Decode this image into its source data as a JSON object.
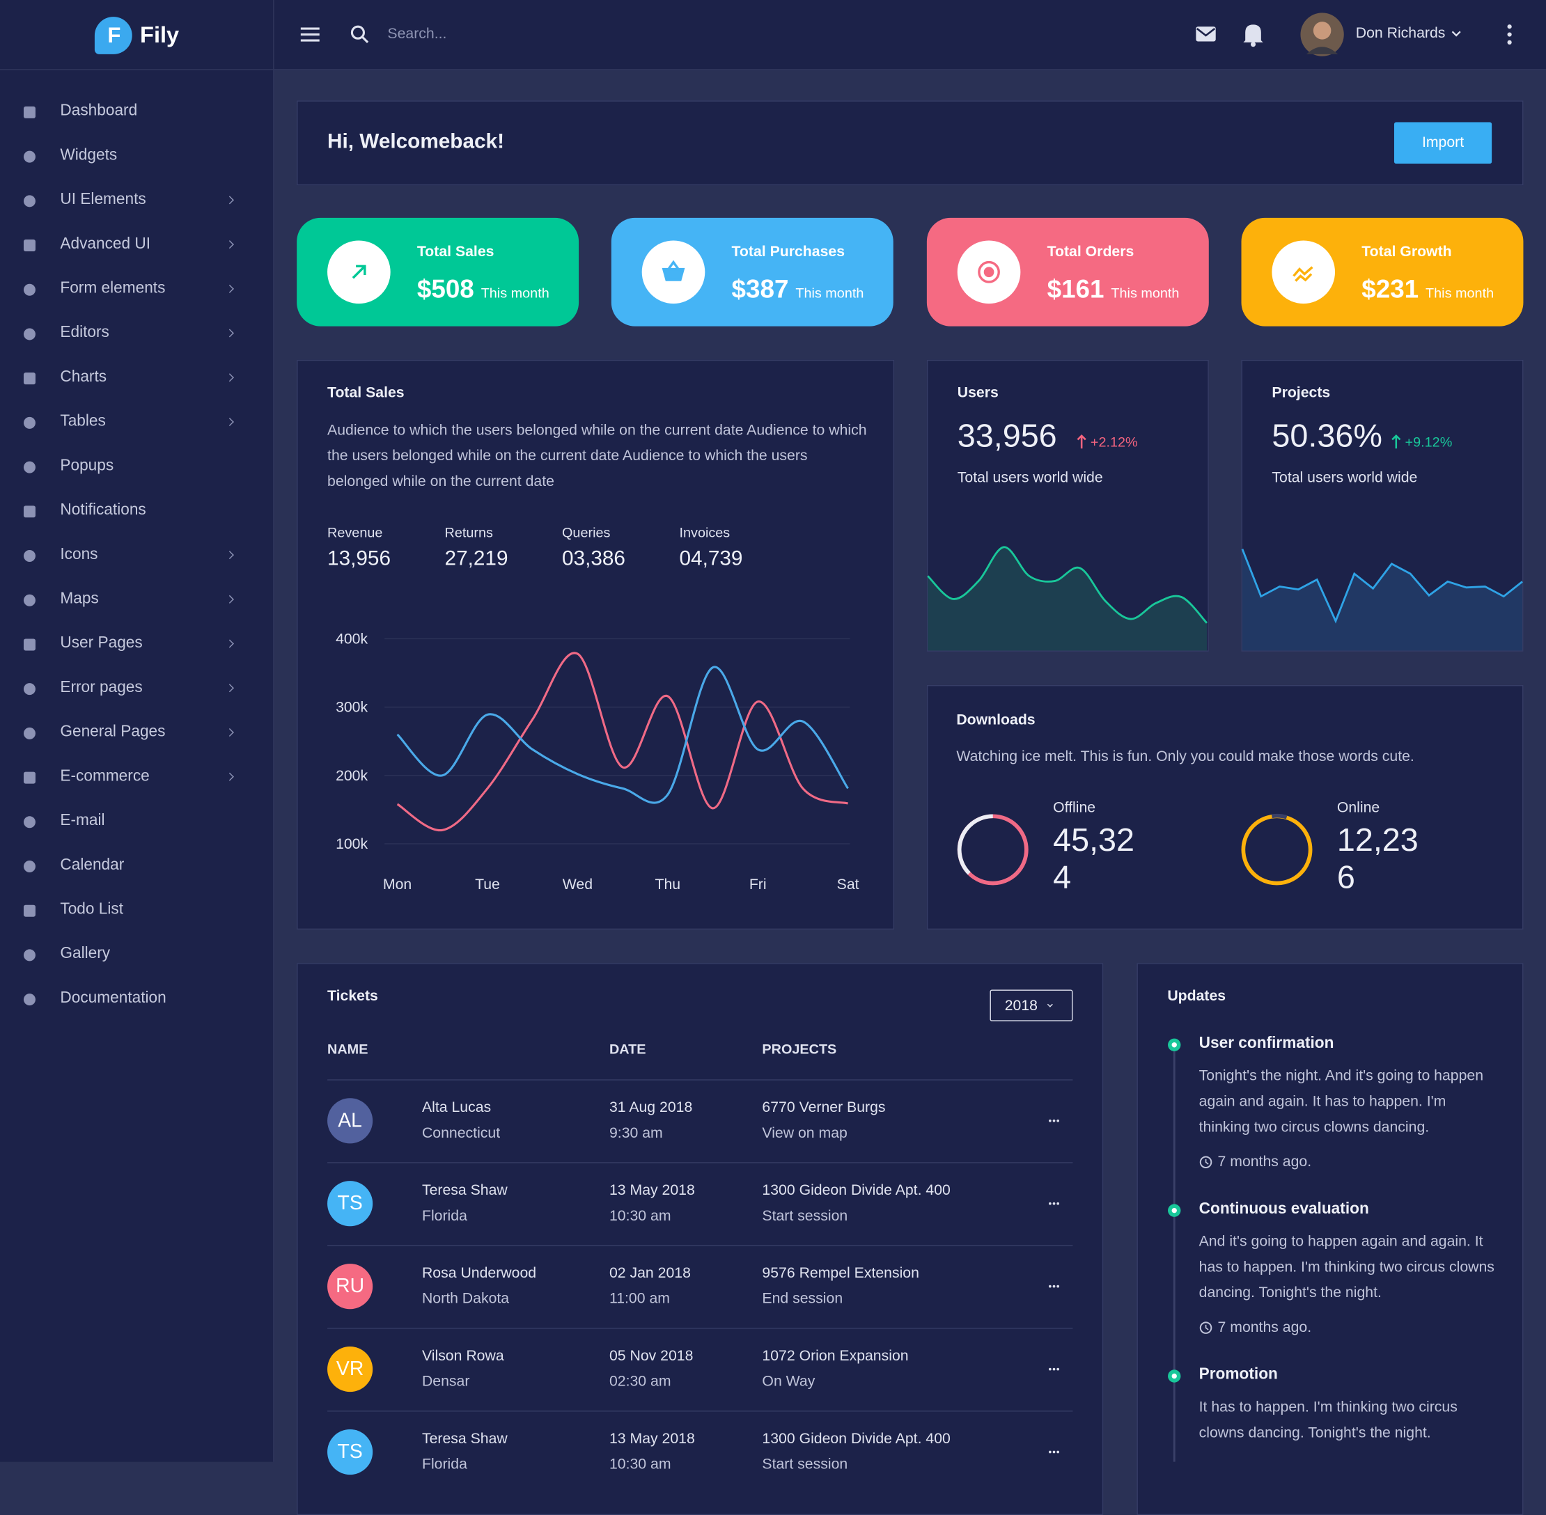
{
  "brand": {
    "initial": "F",
    "name": "Fily"
  },
  "header": {
    "search_placeholder": "Search...",
    "user_name": "Don Richards"
  },
  "sidebar": {
    "items": [
      {
        "label": "Dashboard",
        "submenu": false
      },
      {
        "label": "Widgets",
        "submenu": false
      },
      {
        "label": "UI Elements",
        "submenu": true
      },
      {
        "label": "Advanced UI",
        "submenu": true
      },
      {
        "label": "Form elements",
        "submenu": true
      },
      {
        "label": "Editors",
        "submenu": true
      },
      {
        "label": "Charts",
        "submenu": true
      },
      {
        "label": "Tables",
        "submenu": true
      },
      {
        "label": "Popups",
        "submenu": false
      },
      {
        "label": "Notifications",
        "submenu": false
      },
      {
        "label": "Icons",
        "submenu": true
      },
      {
        "label": "Maps",
        "submenu": true
      },
      {
        "label": "User Pages",
        "submenu": true
      },
      {
        "label": "Error pages",
        "submenu": true
      },
      {
        "label": "General Pages",
        "submenu": true
      },
      {
        "label": "E-commerce",
        "submenu": true
      },
      {
        "label": "E-mail",
        "submenu": false
      },
      {
        "label": "Calendar",
        "submenu": false
      },
      {
        "label": "Todo List",
        "submenu": false
      },
      {
        "label": "Gallery",
        "submenu": false
      },
      {
        "label": "Documentation",
        "submenu": false
      }
    ]
  },
  "welcome": {
    "title": "Hi, Welcomeback!",
    "button": "Import"
  },
  "stat_cards": [
    {
      "title": "Total Sales",
      "value": "$508",
      "period": "This month",
      "color": "#00c896"
    },
    {
      "title": "Total Purchases",
      "value": "$387",
      "period": "This month",
      "color": "#45b4f5"
    },
    {
      "title": "Total Orders",
      "value": "$161",
      "period": "This month",
      "color": "#f56a82"
    },
    {
      "title": "Total Growth",
      "value": "$231",
      "period": "This month",
      "color": "#fdb10b"
    }
  ],
  "total_sales": {
    "title": "Total Sales",
    "description": "Audience to which the users belonged while on the current date Audience to which the users belonged while on the current date Audience to which the users belonged while on the current date",
    "stats": [
      {
        "label": "Revenue",
        "value": "13,956"
      },
      {
        "label": "Returns",
        "value": "27,219"
      },
      {
        "label": "Queries",
        "value": "03,386"
      },
      {
        "label": "Invoices",
        "value": "04,739"
      }
    ]
  },
  "users": {
    "title": "Users",
    "value": "33,956",
    "change": "+2.12%",
    "change_color": "#f5647f",
    "subtitle": "Total users world wide"
  },
  "projects": {
    "title": "Projects",
    "value": "50.36%",
    "change": "+9.12%",
    "change_color": "#19c79a",
    "subtitle": "Total users world wide"
  },
  "downloads": {
    "title": "Downloads",
    "description": "Watching ice melt. This is fun. Only you could make those words cute.",
    "items": [
      {
        "label": "Offline",
        "value": "45,324",
        "color": "#f06a86"
      },
      {
        "label": "Online",
        "value": "12,236",
        "color": "#fdb10b"
      }
    ]
  },
  "tickets": {
    "title": "Tickets",
    "year": "2018",
    "columns": [
      "NAME",
      "DATE",
      "PROJECTS"
    ],
    "rows": [
      {
        "initials": "AL",
        "color": "#52619e",
        "name": "Alta Lucas",
        "location": "Connecticut",
        "date": "31 Aug 2018",
        "time": "9:30 am",
        "project": "6770 Verner Burgs",
        "action": "View on map"
      },
      {
        "initials": "TS",
        "color": "#45b4f5",
        "name": "Teresa Shaw",
        "location": "Florida",
        "date": "13 May 2018",
        "time": "10:30 am",
        "project": "1300 Gideon Divide Apt. 400",
        "action": "Start session"
      },
      {
        "initials": "RU",
        "color": "#f56a82",
        "name": "Rosa Underwood",
        "location": "North Dakota",
        "date": "02 Jan 2018",
        "time": "11:00 am",
        "project": "9576 Rempel Extension",
        "action": "End session"
      },
      {
        "initials": "VR",
        "color": "#fdb10b",
        "name": "Vilson Rowa",
        "location": "Densar",
        "date": "05 Nov 2018",
        "time": "02:30 am",
        "project": "1072 Orion Expansion",
        "action": "On Way"
      },
      {
        "initials": "TS",
        "color": "#45b4f5",
        "name": "Teresa Shaw",
        "location": "Florida",
        "date": "13 May 2018",
        "time": "10:30 am",
        "project": "1300 Gideon Divide Apt. 400",
        "action": "Start session"
      }
    ]
  },
  "updates": {
    "title": "Updates",
    "items": [
      {
        "title": "User confirmation",
        "text": "Tonight's the night. And it's going to happen again and again. It has to happen. I'm thinking two circus clowns dancing.",
        "time": "7 months ago."
      },
      {
        "title": "Continuous evaluation",
        "text": "And it's going to happen again and again. It has to happen. I'm thinking two circus clowns dancing. Tonight's the night.",
        "time": "7 months ago."
      },
      {
        "title": "Promotion",
        "text": "It has to happen. I'm thinking two circus clowns dancing. Tonight's the night."
      }
    ]
  },
  "chart_data": [
    {
      "type": "line",
      "categories": [
        "Mon",
        null,
        "Tue",
        null,
        "Wed",
        null,
        "Thu",
        null,
        "Fri",
        null,
        "Sat"
      ],
      "series": [
        {
          "color": "#f06a86",
          "values": [
            158000,
            120000,
            181000,
            282000,
            378000,
            212000,
            316000,
            152000,
            308000,
            181000,
            159000
          ]
        },
        {
          "color": "#4aa9e9",
          "values": [
            260000,
            200000,
            289000,
            238000,
            202000,
            181000,
            172000,
            358000,
            238000,
            279000,
            181000
          ]
        }
      ],
      "ylim": [
        100000,
        400000
      ],
      "yticks": [
        {
          "value": 100000,
          "label": "100k"
        },
        {
          "value": 200000,
          "label": "200k"
        },
        {
          "value": 300000,
          "label": "300k"
        },
        {
          "value": 400000,
          "label": "400k"
        }
      ],
      "grid": true
    },
    {
      "type": "area",
      "color": "#19c79a",
      "fill": "#1d3f50",
      "smooth": true,
      "values": [
        115,
        92,
        110,
        144,
        115,
        110,
        123,
        90,
        72,
        88,
        94,
        68
      ]
    },
    {
      "type": "area",
      "color": "#2fa3e6",
      "fill": "#213864",
      "smooth": false,
      "values": [
        143,
        95,
        105,
        102,
        112,
        70,
        118,
        103,
        128,
        118,
        96,
        110,
        104,
        105,
        95,
        110
      ]
    }
  ]
}
